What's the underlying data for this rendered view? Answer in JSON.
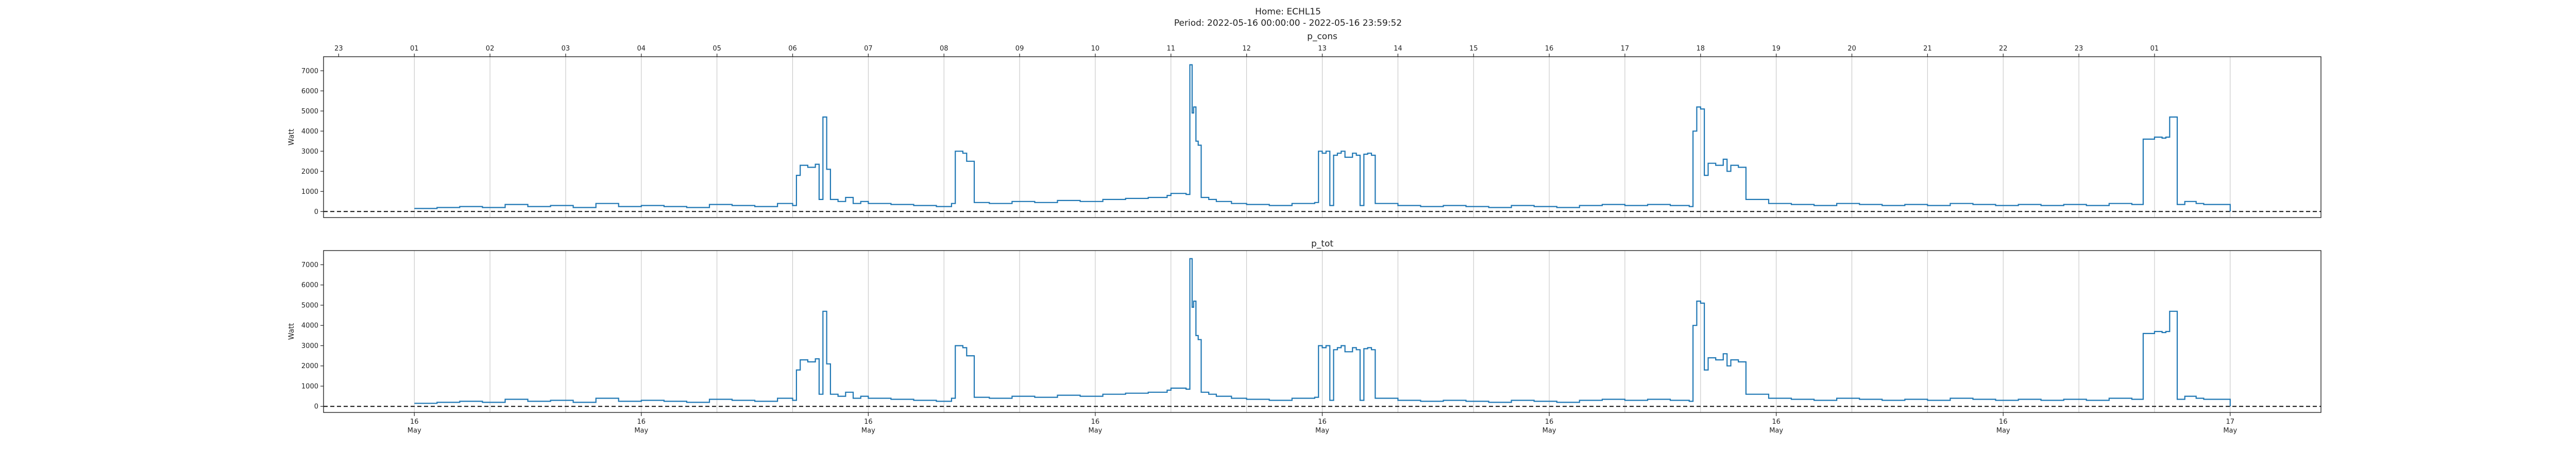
{
  "figure": {
    "home_line": "Home: ECHL15",
    "period_line": "Period: 2022-05-16 00:00:00 - 2022-05-16 23:59:52"
  },
  "hour_ticks": [
    "23",
    "01",
    "02",
    "03",
    "04",
    "05",
    "06",
    "07",
    "08",
    "09",
    "10",
    "11",
    "12",
    "13",
    "14",
    "15",
    "16",
    "17",
    "18",
    "19",
    "20",
    "21",
    "22",
    "23",
    "01"
  ],
  "day_ticks": [
    {
      "day": "16",
      "month": "May"
    },
    {
      "day": "16",
      "month": "May"
    },
    {
      "day": "16",
      "month": "May"
    },
    {
      "day": "16",
      "month": "May"
    },
    {
      "day": "16",
      "month": "May"
    },
    {
      "day": "16",
      "month": "May"
    },
    {
      "day": "16",
      "month": "May"
    },
    {
      "day": "16",
      "month": "May"
    },
    {
      "day": "17",
      "month": "May"
    }
  ],
  "chart_data": [
    {
      "type": "line",
      "title": "p_cons",
      "ylabel": "Watt",
      "xlabel": "",
      "color": "#1f77b4",
      "ylim": [
        -300,
        7700
      ],
      "yticks": [
        0,
        1000,
        2000,
        3000,
        4000,
        5000,
        6000,
        7000
      ],
      "xlim_hours": [
        -1.2,
        25.2
      ],
      "baseline_value": 0,
      "x_hours": [
        0,
        0.3,
        0.6,
        0.9,
        1.2,
        1.5,
        1.8,
        2.1,
        2.4,
        2.7,
        3.0,
        3.3,
        3.6,
        3.9,
        4.2,
        4.5,
        4.8,
        5.0,
        5.05,
        5.1,
        5.2,
        5.3,
        5.35,
        5.4,
        5.45,
        5.5,
        5.6,
        5.7,
        5.8,
        5.9,
        6.0,
        6.3,
        6.6,
        6.9,
        7.1,
        7.15,
        7.25,
        7.3,
        7.4,
        7.6,
        7.9,
        8.2,
        8.5,
        8.8,
        9.1,
        9.4,
        9.7,
        9.95,
        10.0,
        10.2,
        10.25,
        10.28,
        10.3,
        10.33,
        10.36,
        10.4,
        10.5,
        10.6,
        10.8,
        11.0,
        11.3,
        11.6,
        11.9,
        11.95,
        12.0,
        12.05,
        12.1,
        12.15,
        12.2,
        12.25,
        12.3,
        12.4,
        12.45,
        12.5,
        12.55,
        12.6,
        12.65,
        12.7,
        13.0,
        13.3,
        13.6,
        13.9,
        14.2,
        14.5,
        14.8,
        15.1,
        15.4,
        15.7,
        16.0,
        16.3,
        16.6,
        16.85,
        16.9,
        16.95,
        17.0,
        17.05,
        17.1,
        17.2,
        17.3,
        17.35,
        17.4,
        17.5,
        17.6,
        17.9,
        18.2,
        18.5,
        18.8,
        19.1,
        19.4,
        19.7,
        20.0,
        20.3,
        20.6,
        20.9,
        21.2,
        21.5,
        21.8,
        22.1,
        22.4,
        22.7,
        22.8,
        22.85,
        23.0,
        23.1,
        23.15,
        23.2,
        23.3,
        23.4,
        23.55,
        23.65,
        24.0
      ],
      "values": [
        150,
        200,
        250,
        200,
        350,
        250,
        300,
        200,
        400,
        250,
        300,
        250,
        200,
        350,
        300,
        250,
        400,
        300,
        1800,
        2300,
        2200,
        2350,
        600,
        4700,
        2100,
        600,
        500,
        700,
        400,
        500,
        400,
        350,
        300,
        250,
        400,
        3000,
        2900,
        2500,
        450,
        400,
        500,
        450,
        550,
        500,
        600,
        650,
        700,
        800,
        900,
        850,
        7300,
        4900,
        5200,
        3500,
        3300,
        700,
        600,
        500,
        400,
        350,
        300,
        400,
        450,
        3000,
        2900,
        3000,
        300,
        2800,
        2900,
        3000,
        2700,
        2900,
        2800,
        300,
        2850,
        2900,
        2800,
        400,
        300,
        250,
        300,
        250,
        200,
        300,
        250,
        200,
        300,
        350,
        300,
        350,
        300,
        250,
        4000,
        5200,
        5100,
        1800,
        2400,
        2300,
        2600,
        2000,
        2300,
        2200,
        600,
        400,
        350,
        300,
        400,
        350,
        300,
        350,
        300,
        400,
        350,
        300,
        350,
        300,
        350,
        300,
        400,
        350,
        350,
        3600,
        3700,
        3650,
        3700,
        4700,
        350,
        500,
        400,
        350,
        0
      ]
    },
    {
      "type": "line",
      "title": "p_tot",
      "ylabel": "Watt",
      "xlabel": "",
      "color": "#1f77b4",
      "ylim": [
        -300,
        7700
      ],
      "yticks": [
        0,
        1000,
        2000,
        3000,
        4000,
        5000,
        6000,
        7000
      ],
      "xlim_hours": [
        -1.2,
        25.2
      ],
      "baseline_value": 0,
      "x_hours": [
        0,
        0.3,
        0.6,
        0.9,
        1.2,
        1.5,
        1.8,
        2.1,
        2.4,
        2.7,
        3.0,
        3.3,
        3.6,
        3.9,
        4.2,
        4.5,
        4.8,
        5.0,
        5.05,
        5.1,
        5.2,
        5.3,
        5.35,
        5.4,
        5.45,
        5.5,
        5.6,
        5.7,
        5.8,
        5.9,
        6.0,
        6.3,
        6.6,
        6.9,
        7.1,
        7.15,
        7.25,
        7.3,
        7.4,
        7.6,
        7.9,
        8.2,
        8.5,
        8.8,
        9.1,
        9.4,
        9.7,
        9.95,
        10.0,
        10.2,
        10.25,
        10.28,
        10.3,
        10.33,
        10.36,
        10.4,
        10.5,
        10.6,
        10.8,
        11.0,
        11.3,
        11.6,
        11.9,
        11.95,
        12.0,
        12.05,
        12.1,
        12.15,
        12.2,
        12.25,
        12.3,
        12.4,
        12.45,
        12.5,
        12.55,
        12.6,
        12.65,
        12.7,
        13.0,
        13.3,
        13.6,
        13.9,
        14.2,
        14.5,
        14.8,
        15.1,
        15.4,
        15.7,
        16.0,
        16.3,
        16.6,
        16.85,
        16.9,
        16.95,
        17.0,
        17.05,
        17.1,
        17.2,
        17.3,
        17.35,
        17.4,
        17.5,
        17.6,
        17.9,
        18.2,
        18.5,
        18.8,
        19.1,
        19.4,
        19.7,
        20.0,
        20.3,
        20.6,
        20.9,
        21.2,
        21.5,
        21.8,
        22.1,
        22.4,
        22.7,
        22.8,
        22.85,
        23.0,
        23.1,
        23.15,
        23.2,
        23.3,
        23.4,
        23.55,
        23.65,
        24.0
      ],
      "values": [
        150,
        200,
        250,
        200,
        350,
        250,
        300,
        200,
        400,
        250,
        300,
        250,
        200,
        350,
        300,
        250,
        400,
        300,
        1800,
        2300,
        2200,
        2350,
        600,
        4700,
        2100,
        600,
        500,
        700,
        400,
        500,
        400,
        350,
        300,
        250,
        400,
        3000,
        2900,
        2500,
        450,
        400,
        500,
        450,
        550,
        500,
        600,
        650,
        700,
        800,
        900,
        850,
        7300,
        4900,
        5200,
        3500,
        3300,
        700,
        600,
        500,
        400,
        350,
        300,
        400,
        450,
        3000,
        2900,
        3000,
        300,
        2800,
        2900,
        3000,
        2700,
        2900,
        2800,
        300,
        2850,
        2900,
        2800,
        400,
        300,
        250,
        300,
        250,
        200,
        300,
        250,
        200,
        300,
        350,
        300,
        350,
        300,
        250,
        4000,
        5200,
        5100,
        1800,
        2400,
        2300,
        2600,
        2000,
        2300,
        2200,
        600,
        400,
        350,
        300,
        400,
        350,
        300,
        350,
        300,
        400,
        350,
        300,
        350,
        300,
        350,
        300,
        400,
        350,
        350,
        3600,
        3700,
        3650,
        3700,
        4700,
        350,
        500,
        400,
        350,
        0
      ]
    }
  ]
}
